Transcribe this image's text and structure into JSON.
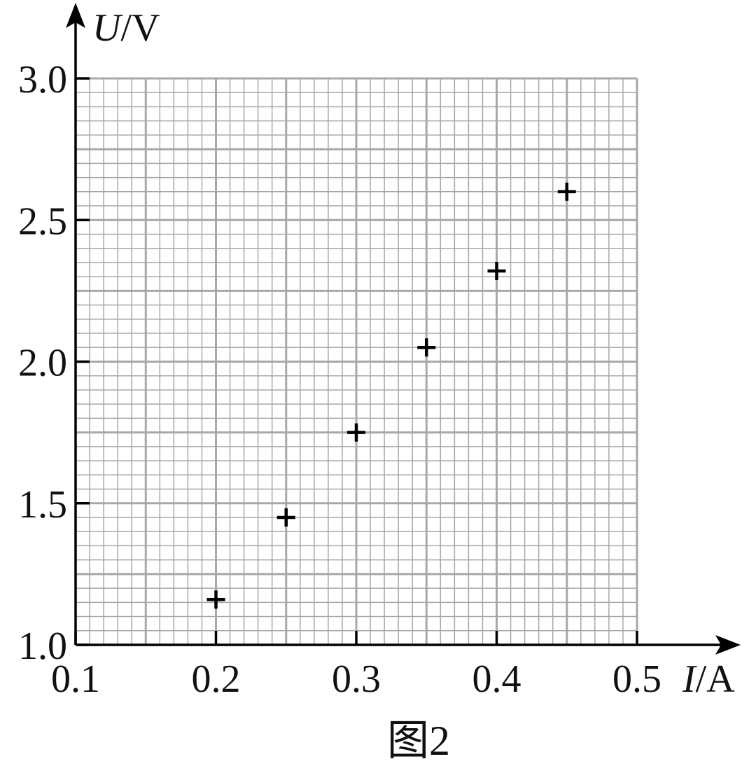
{
  "chart_data": {
    "type": "scatter",
    "title": "",
    "caption": "图2",
    "xlabel_var": "I",
    "xlabel_unit": "/A",
    "ylabel_var": "U",
    "ylabel_unit": "/V",
    "xlim": [
      0.1,
      0.5
    ],
    "ylim": [
      1.0,
      3.0
    ],
    "x_ticks": [
      "0.1",
      "0.2",
      "0.3",
      "0.4",
      "0.5"
    ],
    "y_ticks": [
      "1.0",
      "1.5",
      "2.0",
      "2.5",
      "3.0"
    ],
    "grid": true,
    "marker": "plus",
    "points": [
      {
        "x": 0.2,
        "y": 1.16
      },
      {
        "x": 0.25,
        "y": 1.45
      },
      {
        "x": 0.3,
        "y": 1.75
      },
      {
        "x": 0.35,
        "y": 2.05
      },
      {
        "x": 0.4,
        "y": 2.32
      },
      {
        "x": 0.45,
        "y": 2.6
      }
    ]
  }
}
